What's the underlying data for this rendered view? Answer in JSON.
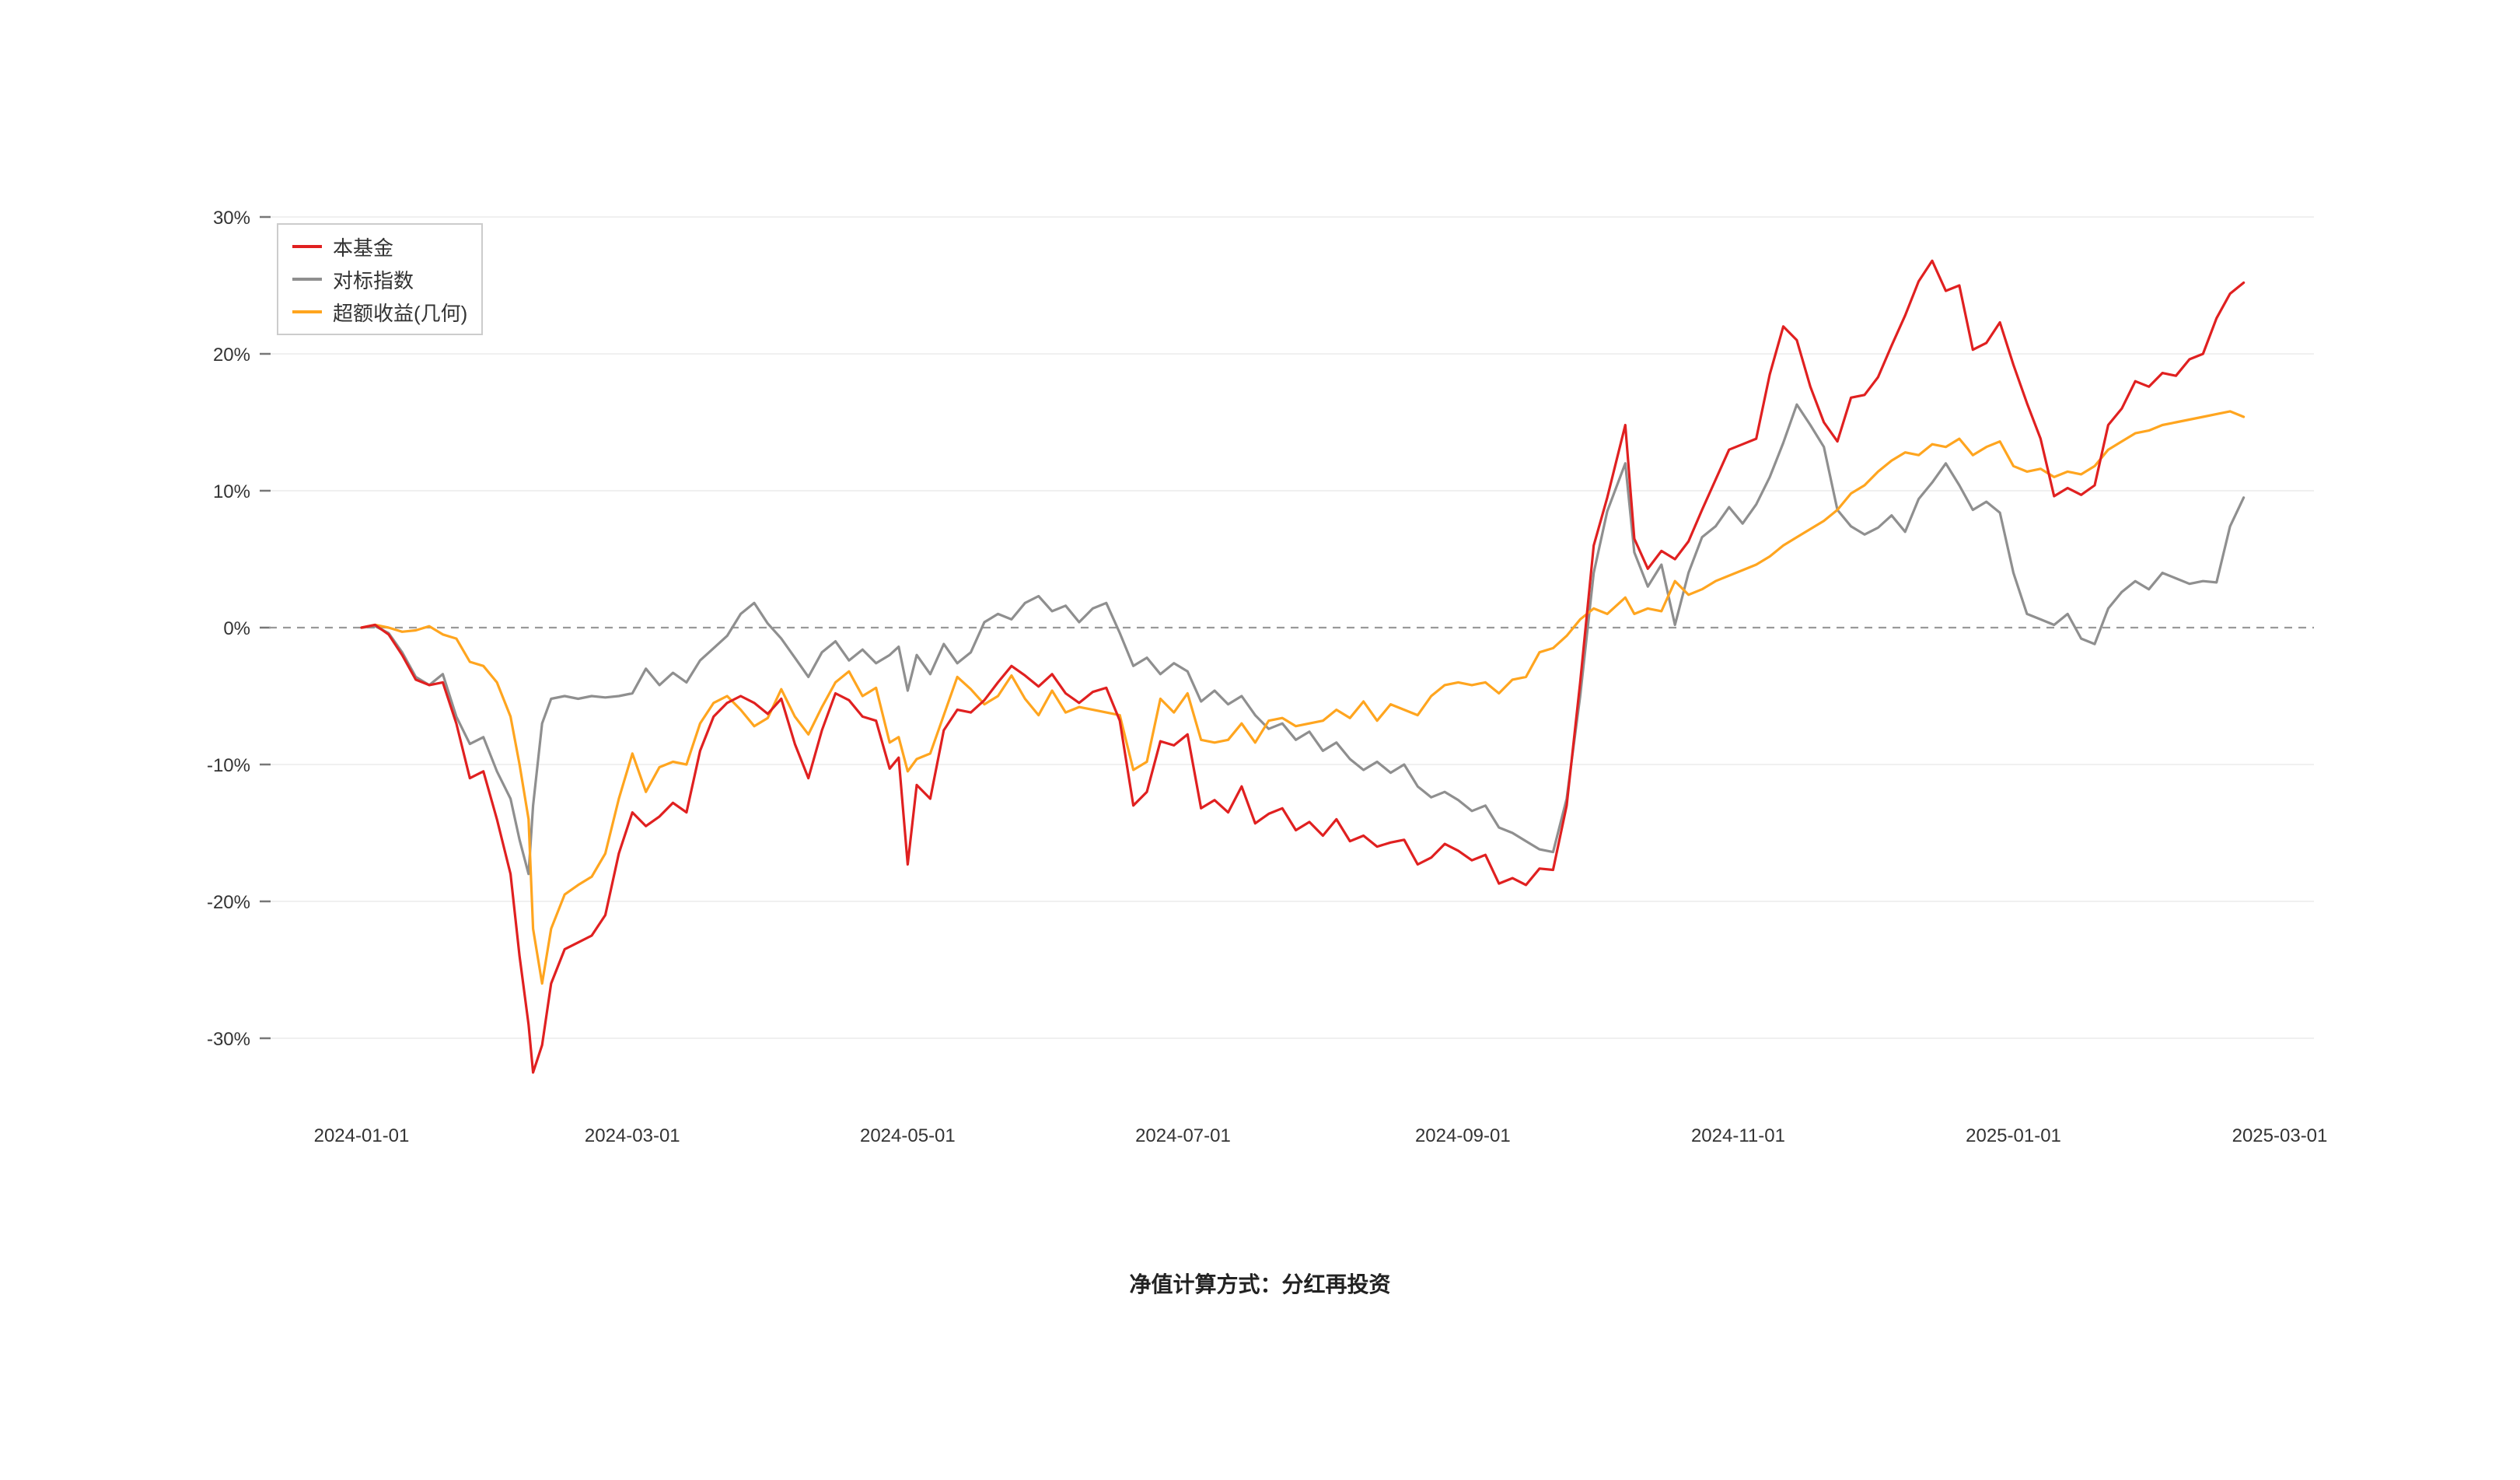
{
  "page": {
    "background": "#ffffff"
  },
  "footer": {
    "note": "净值计算方式：分红再投资"
  },
  "legend": {
    "position": "top-left"
  },
  "chart_data": {
    "type": "line",
    "title": "",
    "xlabel": "",
    "ylabel": "",
    "x_unit": "days_since_2024-01-01",
    "grid": "horizontal-light",
    "zero_line": "dashed",
    "legend_position": "top-left",
    "ylim": [
      -35,
      32
    ],
    "colors": {
      "fund": "#e02020",
      "benchmark": "#8f8f8f",
      "excess": "#ffa51f",
      "zero_line": "#999999",
      "grid": "#f0f0f0",
      "tick_text": "#333333"
    },
    "x_ticks": {
      "labels": [
        "2024-01-01",
        "2024-03-01",
        "2024-05-01",
        "2024-07-01",
        "2024-09-01",
        "2024-11-01",
        "2025-01-01",
        "2025-03-01"
      ],
      "days": [
        0,
        60,
        121,
        182,
        244,
        305,
        366,
        425
      ]
    },
    "y_ticks": {
      "values": [
        30,
        20,
        10,
        0,
        -10,
        -20,
        -30
      ],
      "labels": [
        "30%",
        "20%",
        "10%",
        "0%",
        "-10%",
        "-20%",
        "-30%"
      ]
    },
    "x": [
      0,
      3,
      6,
      9,
      12,
      15,
      18,
      21,
      24,
      27,
      30,
      33,
      35,
      37,
      38,
      40,
      42,
      45,
      48,
      51,
      54,
      57,
      60,
      63,
      66,
      69,
      72,
      75,
      78,
      81,
      84,
      87,
      90,
      93,
      96,
      99,
      102,
      105,
      108,
      111,
      114,
      117,
      119,
      121,
      123,
      126,
      129,
      132,
      135,
      138,
      141,
      144,
      147,
      150,
      153,
      156,
      159,
      162,
      165,
      168,
      171,
      174,
      177,
      180,
      183,
      186,
      189,
      192,
      195,
      198,
      201,
      204,
      207,
      210,
      213,
      216,
      219,
      222,
      225,
      228,
      231,
      234,
      237,
      240,
      243,
      246,
      249,
      252,
      255,
      258,
      261,
      264,
      267,
      270,
      273,
      276,
      280,
      282,
      285,
      288,
      291,
      294,
      297,
      300,
      303,
      306,
      309,
      312,
      315,
      318,
      321,
      324,
      327,
      330,
      333,
      336,
      339,
      342,
      345,
      348,
      351,
      354,
      357,
      360,
      363,
      366,
      369,
      372,
      375,
      378,
      381,
      384,
      387,
      390,
      393,
      396,
      399,
      402,
      405,
      408,
      411,
      414,
      417
    ],
    "series": [
      {
        "name": "本基金",
        "color": "#e02020",
        "values": [
          0,
          0.2,
          -0.5,
          -2,
          -3.8,
          -4.2,
          -4,
          -7,
          -11,
          -10.5,
          -14,
          -18,
          -24,
          -29,
          -32.5,
          -30.5,
          -26,
          -23.5,
          -23,
          -22.5,
          -21,
          -16.5,
          -13.5,
          -14.5,
          -13.8,
          -12.8,
          -13.5,
          -9,
          -6.5,
          -5.5,
          -5,
          -5.5,
          -6.3,
          -5.2,
          -8.5,
          -11,
          -7.5,
          -4.8,
          -5.3,
          -6.5,
          -6.8,
          -10.3,
          -9.5,
          -17.3,
          -11.5,
          -12.5,
          -7.5,
          -6,
          -6.2,
          -5.3,
          -4,
          -2.8,
          -3.5,
          -4.3,
          -3.4,
          -4.8,
          -5.5,
          -4.7,
          -4.4,
          -6.8,
          -13,
          -12,
          -8.3,
          -8.6,
          -7.8,
          -13.2,
          -12.6,
          -13.5,
          -11.6,
          -14.3,
          -13.6,
          -13.2,
          -14.8,
          -14.2,
          -15.2,
          -14,
          -15.6,
          -15.2,
          -16,
          -15.7,
          -15.5,
          -17.3,
          -16.8,
          -15.8,
          -16.3,
          -17,
          -16.6,
          -18.7,
          -18.3,
          -18.8,
          -17.6,
          -17.7,
          -13,
          -4,
          6,
          9.5,
          14.8,
          6.5,
          4.3,
          5.6,
          5,
          6.3,
          8.6,
          10.8,
          13,
          13.4,
          13.8,
          18.5,
          22,
          21,
          17.6,
          15,
          13.6,
          16.8,
          17,
          18.3,
          20.6,
          22.8,
          25.3,
          26.8,
          24.6,
          25,
          20.3,
          20.8,
          22.3,
          19.2,
          16.4,
          13.8,
          9.6,
          10.2,
          9.7,
          10.4,
          14.8,
          16,
          18,
          17.6,
          18.6,
          18.4,
          19.6,
          20,
          22.6,
          24.4,
          25.2
        ]
      },
      {
        "name": "对标指数",
        "color": "#8f8f8f",
        "values": [
          0,
          0.1,
          -0.4,
          -1.8,
          -3.6,
          -4.2,
          -3.4,
          -6.5,
          -8.5,
          -8,
          -10.5,
          -12.5,
          -15.5,
          -18,
          -13,
          -7,
          -5.2,
          -5,
          -5.2,
          -5,
          -5.1,
          -5,
          -4.8,
          -3,
          -4.2,
          -3.3,
          -4,
          -2.4,
          -1.5,
          -0.6,
          1,
          1.8,
          0.3,
          -0.8,
          -2.2,
          -3.6,
          -1.8,
          -1,
          -2.4,
          -1.6,
          -2.6,
          -2,
          -1.4,
          -4.6,
          -2,
          -3.4,
          -1.2,
          -2.6,
          -1.8,
          0.4,
          1,
          0.6,
          1.8,
          2.3,
          1.2,
          1.6,
          0.4,
          1.4,
          1.8,
          -0.4,
          -2.8,
          -2.2,
          -3.4,
          -2.6,
          -3.2,
          -5.4,
          -4.6,
          -5.6,
          -5,
          -6.4,
          -7.4,
          -7,
          -8.2,
          -7.6,
          -9,
          -8.4,
          -9.6,
          -10.4,
          -9.8,
          -10.6,
          -10,
          -11.6,
          -12.4,
          -12,
          -12.6,
          -13.4,
          -13,
          -14.6,
          -15,
          -15.6,
          -16.2,
          -16.4,
          -12.5,
          -5,
          4,
          8.5,
          12,
          5.5,
          3,
          4.6,
          0.2,
          4,
          6.6,
          7.4,
          8.8,
          7.6,
          9,
          11,
          13.5,
          16.3,
          14.8,
          13.2,
          8.6,
          7.4,
          6.8,
          7.3,
          8.2,
          7,
          9.4,
          10.6,
          12,
          10.4,
          8.6,
          9.2,
          8.4,
          4,
          1,
          0.6,
          0.2,
          1,
          -0.8,
          -1.2,
          1.4,
          2.6,
          3.4,
          2.8,
          4,
          3.6,
          3.2,
          3.4,
          3.3,
          7.4,
          9.5
        ]
      },
      {
        "name": "超额收益(几何)",
        "color": "#ffa51f",
        "values": [
          0,
          0.2,
          0,
          -0.3,
          -0.2,
          0.1,
          -0.5,
          -0.8,
          -2.5,
          -2.8,
          -4,
          -6.5,
          -10,
          -14,
          -22,
          -26,
          -22,
          -19.5,
          -18.8,
          -18.2,
          -16.5,
          -12.5,
          -9.2,
          -12,
          -10.2,
          -9.8,
          -10,
          -7,
          -5.5,
          -5,
          -6,
          -7.2,
          -6.6,
          -4.5,
          -6.5,
          -7.8,
          -5.8,
          -4,
          -3.2,
          -5,
          -4.4,
          -8.4,
          -8,
          -10.5,
          -9.6,
          -9.2,
          -6.4,
          -3.6,
          -4.5,
          -5.6,
          -5,
          -3.5,
          -5.2,
          -6.4,
          -4.6,
          -6.2,
          -5.8,
          -6,
          -6.2,
          -6.4,
          -10.4,
          -9.8,
          -5.2,
          -6.2,
          -4.8,
          -8.2,
          -8.4,
          -8.2,
          -7,
          -8.4,
          -6.8,
          -6.6,
          -7.2,
          -7,
          -6.8,
          -6,
          -6.6,
          -5.4,
          -6.8,
          -5.6,
          -6,
          -6.4,
          -5,
          -4.2,
          -4,
          -4.2,
          -4,
          -4.8,
          -3.8,
          -3.6,
          -1.8,
          -1.5,
          -0.6,
          0.6,
          1.4,
          1,
          2.2,
          1,
          1.4,
          1.2,
          3.4,
          2.4,
          2.8,
          3.4,
          3.8,
          4.2,
          4.6,
          5.2,
          6,
          6.6,
          7.2,
          7.8,
          8.6,
          9.8,
          10.4,
          11.4,
          12.2,
          12.8,
          12.6,
          13.4,
          13.2,
          13.8,
          12.6,
          13.2,
          13.6,
          11.8,
          11.4,
          11.6,
          11,
          11.4,
          11.2,
          11.8,
          13,
          13.6,
          14.2,
          14.4,
          14.8,
          15,
          15.2,
          15.4,
          15.6,
          15.8,
          15.4
        ]
      }
    ]
  }
}
